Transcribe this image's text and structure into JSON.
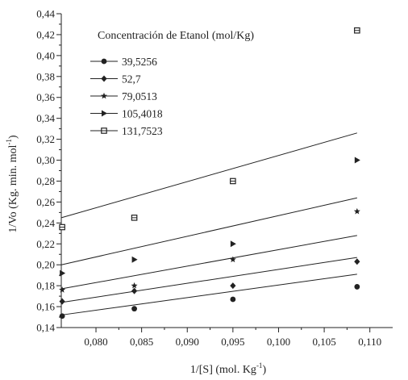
{
  "chart_data": {
    "type": "scatter",
    "title": "",
    "legend_title": "Concentración de Etanol (mol/Kg)",
    "legend_position": "top-left",
    "grid": false,
    "xlabel": {
      "text": "1/[S] (mol. Kg",
      "sup": "-1",
      "close": ")"
    },
    "ylabel": {
      "text": "1/Vo (Kg. min. mol",
      "sup": "-1",
      "close": ")"
    },
    "xlim": [
      0.0762,
      0.1125
    ],
    "ylim": [
      0.14,
      0.44
    ],
    "xticks": [
      {
        "value": 0.08,
        "label": "0,080"
      },
      {
        "value": 0.085,
        "label": "0,085"
      },
      {
        "value": 0.09,
        "label": "0,090"
      },
      {
        "value": 0.095,
        "label": "0,095"
      },
      {
        "value": 0.1,
        "label": "0,100"
      },
      {
        "value": 0.105,
        "label": "0,105"
      },
      {
        "value": 0.11,
        "label": "0,110"
      }
    ],
    "yticks": [
      {
        "value": 0.14,
        "label": "0,14"
      },
      {
        "value": 0.16,
        "label": "0,16"
      },
      {
        "value": 0.18,
        "label": "0,18"
      },
      {
        "value": 0.2,
        "label": "0,20"
      },
      {
        "value": 0.22,
        "label": "0,22"
      },
      {
        "value": 0.24,
        "label": "0,24"
      },
      {
        "value": 0.26,
        "label": "0,26"
      },
      {
        "value": 0.28,
        "label": "0,28"
      },
      {
        "value": 0.3,
        "label": "0,30"
      },
      {
        "value": 0.32,
        "label": "0,32"
      },
      {
        "value": 0.34,
        "label": "0,34"
      },
      {
        "value": 0.36,
        "label": "0,36"
      },
      {
        "value": 0.38,
        "label": "0,38"
      },
      {
        "value": 0.4,
        "label": "0,40"
      },
      {
        "value": 0.42,
        "label": "0,42"
      },
      {
        "value": 0.44,
        "label": "0,44"
      }
    ],
    "series": [
      {
        "name": "39,5256",
        "marker": "circle",
        "x": [
          0.0763,
          0.0842,
          0.095,
          0.1086
        ],
        "y": [
          0.151,
          0.158,
          0.167,
          0.179
        ],
        "fit": [
          [
            0.0762,
            0.152
          ],
          [
            0.1086,
            0.191
          ]
        ]
      },
      {
        "name": "52,7",
        "marker": "diamond",
        "x": [
          0.0763,
          0.0842,
          0.095,
          0.1086
        ],
        "y": [
          0.165,
          0.175,
          0.18,
          0.203
        ],
        "fit": [
          [
            0.0762,
            0.164
          ],
          [
            0.1086,
            0.207
          ]
        ]
      },
      {
        "name": "79,0513",
        "marker": "star",
        "x": [
          0.0763,
          0.0842,
          0.095,
          0.1086
        ],
        "y": [
          0.176,
          0.18,
          0.205,
          0.251
        ],
        "fit": [
          [
            0.0762,
            0.177
          ],
          [
            0.1086,
            0.228
          ]
        ]
      },
      {
        "name": "105,4018",
        "marker": "triangle-right",
        "x": [
          0.0763,
          0.0842,
          0.095,
          0.1086
        ],
        "y": [
          0.192,
          0.205,
          0.22,
          0.3
        ],
        "fit": [
          [
            0.0762,
            0.2
          ],
          [
            0.1086,
            0.264
          ]
        ]
      },
      {
        "name": "131,7523",
        "marker": "square",
        "x": [
          0.0763,
          0.0842,
          0.095,
          0.1086
        ],
        "y": [
          0.236,
          0.245,
          0.28,
          0.424
        ],
        "fit": [
          [
            0.0762,
            0.245
          ],
          [
            0.1086,
            0.326
          ]
        ]
      }
    ]
  }
}
